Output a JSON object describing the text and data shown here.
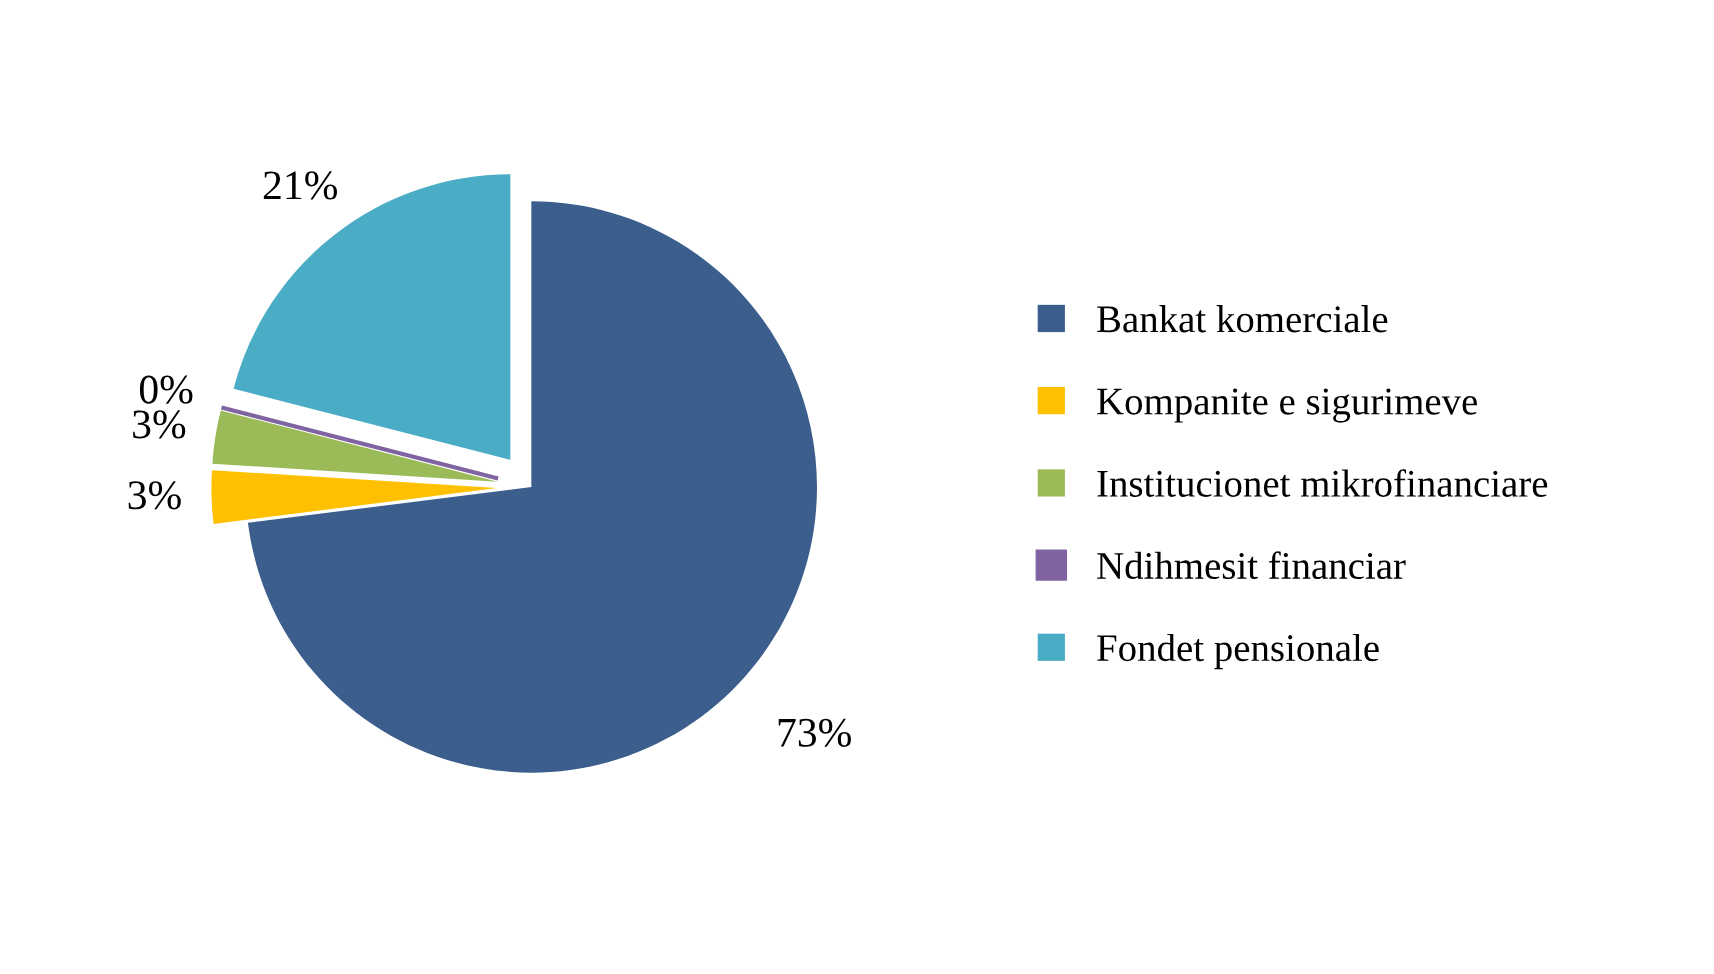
{
  "chart_data": {
    "type": "pie",
    "categories": [
      "Bankat komerciale",
      "Kompanite e sigurimeve",
      "Institucionet mikrofinanciare",
      "Ndihmesit financiar",
      "Fondet pensionale"
    ],
    "values": [
      73,
      3,
      3,
      0,
      21
    ],
    "value_labels": [
      "73%",
      "3%",
      "3%",
      "0%",
      "21%"
    ],
    "colors": [
      "#3b5e8c",
      "#ffc000",
      "#9bbb59",
      "#8064a2",
      "#4bacc6"
    ],
    "legend": "right"
  }
}
